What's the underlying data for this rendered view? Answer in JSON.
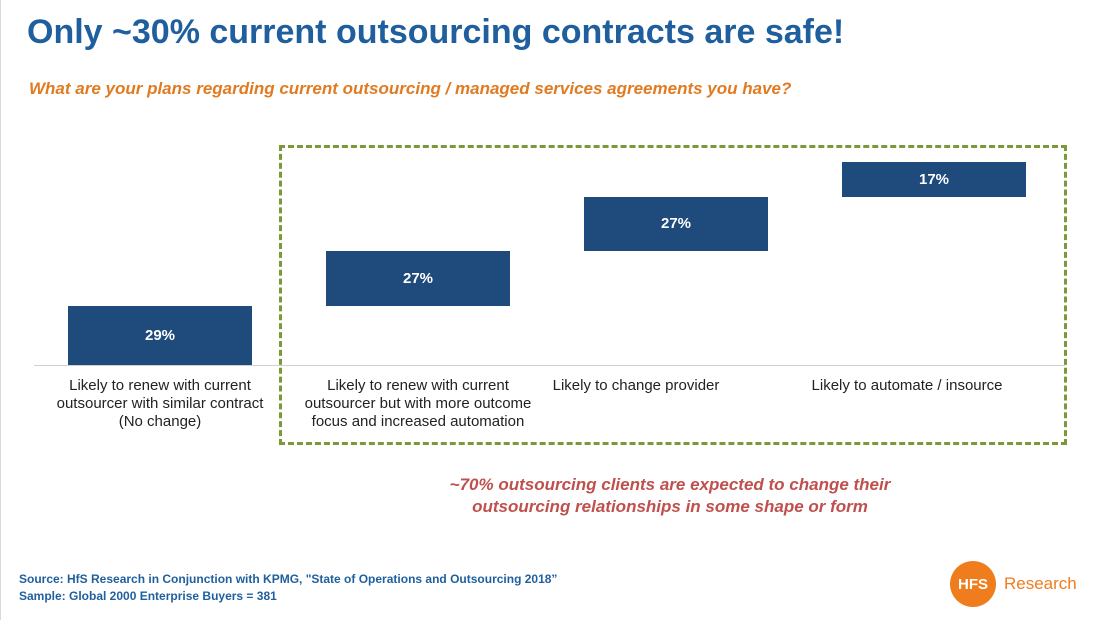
{
  "title": "Only ~30% current outsourcing contracts are safe!",
  "subtitle": "What are your plans regarding current outsourcing / managed services agreements you have?",
  "chart_data": {
    "type": "bar",
    "subtype": "waterfall",
    "categories": [
      "Likely to renew with current outsourcer with similar contract (No change)",
      "Likely to renew with current outsourcer but with more outcome focus and increased automation",
      "Likely to change provider",
      "Likely to automate / insource"
    ],
    "values": [
      29,
      27,
      27,
      17
    ],
    "data_labels": [
      "29%",
      "27%",
      "27%",
      "17%"
    ],
    "ylim": [
      0,
      100
    ],
    "grid": false,
    "colors": {
      "bar": "#1e4a7c",
      "highlight_box": "#7a9a3a"
    }
  },
  "category_lines": [
    [
      "Likely to renew with current",
      "outsourcer with similar contract",
      "(No change)"
    ],
    [
      "Likely to renew with current",
      "outsourcer but with more outcome",
      "focus and increased automation"
    ],
    [
      "Likely to change provider"
    ],
    [
      "Likely to automate / insource"
    ]
  ],
  "callout": {
    "line1": "~70% outsourcing clients are expected to change their",
    "line2": "outsourcing relationships in some shape or form"
  },
  "source": {
    "line1": "Source: HfS Research in Conjunction with KPMG, \"State of Operations and Outsourcing 2018”",
    "line2": "Sample: Global 2000 Enterprise Buyers = 381"
  },
  "logo": {
    "mark": "HFS",
    "word": "Research"
  }
}
